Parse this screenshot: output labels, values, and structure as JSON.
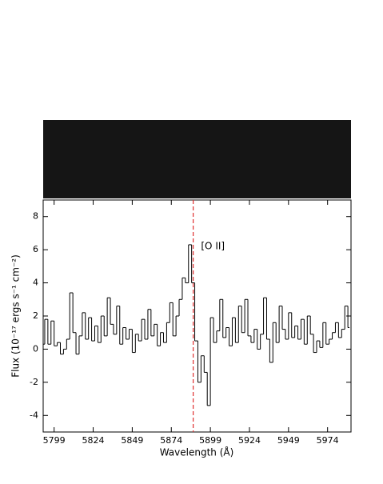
{
  "chart_data": {
    "type": "step",
    "xlabel": "Wavelength (Å)",
    "ylabel": "Flux (10⁻¹⁷ ergs s⁻¹ cm⁻²)",
    "x": [
      5792,
      5794,
      5796,
      5798,
      5800,
      5802,
      5804,
      5806,
      5808,
      5810,
      5812,
      5814,
      5816,
      5818,
      5820,
      5822,
      5824,
      5826,
      5828,
      5830,
      5832,
      5834,
      5836,
      5838,
      5840,
      5842,
      5844,
      5846,
      5848,
      5850,
      5852,
      5854,
      5856,
      5858,
      5860,
      5862,
      5864,
      5866,
      5868,
      5870,
      5872,
      5874,
      5876,
      5878,
      5880,
      5882,
      5884,
      5886,
      5888,
      5890,
      5892,
      5894,
      5896,
      5898,
      5900,
      5902,
      5904,
      5906,
      5908,
      5910,
      5912,
      5914,
      5916,
      5918,
      5920,
      5922,
      5924,
      5926,
      5928,
      5930,
      5932,
      5934,
      5936,
      5938,
      5940,
      5942,
      5944,
      5946,
      5948,
      5950,
      5952,
      5954,
      5956,
      5958,
      5960,
      5962,
      5964,
      5966,
      5968,
      5970,
      5972,
      5974,
      5976,
      5978,
      5980,
      5982,
      5984,
      5986,
      5988
    ],
    "values": [
      0.3,
      1.8,
      0.3,
      1.7,
      0.2,
      0.4,
      -0.3,
      0.0,
      0.6,
      3.4,
      1.0,
      -0.3,
      0.8,
      2.2,
      0.6,
      1.9,
      0.5,
      1.4,
      0.4,
      2.0,
      0.8,
      3.1,
      1.5,
      0.9,
      2.6,
      0.3,
      1.3,
      0.6,
      1.2,
      -0.2,
      0.9,
      0.5,
      1.8,
      0.6,
      2.4,
      0.8,
      1.5,
      0.2,
      1.0,
      0.4,
      1.6,
      2.8,
      0.8,
      2.0,
      3.0,
      4.3,
      4.0,
      6.3,
      4.0,
      0.5,
      -2.0,
      -0.4,
      -1.4,
      -3.4,
      1.9,
      0.4,
      1.1,
      3.0,
      0.7,
      1.3,
      0.2,
      1.9,
      0.4,
      2.6,
      1.0,
      3.0,
      0.8,
      0.4,
      1.2,
      0.0,
      0.9,
      3.1,
      0.6,
      -0.8,
      1.6,
      0.4,
      2.6,
      1.2,
      0.6,
      2.2,
      0.7,
      1.4,
      0.6,
      1.8,
      0.3,
      2.0,
      0.9,
      -0.2,
      0.5,
      0.1,
      1.6,
      0.3,
      0.6,
      1.0,
      1.6,
      0.7,
      1.2,
      2.6,
      1.3
    ],
    "color": "#000000",
    "xlim": [
      5792,
      5989
    ],
    "ylim": [
      -5,
      9
    ],
    "xticks": [
      5799,
      5824,
      5849,
      5874,
      5899,
      5924,
      5949,
      5974
    ],
    "yticks": [
      -4,
      -2,
      0,
      2,
      4,
      6,
      8
    ],
    "vline": {
      "x": 5888,
      "color": "#e03030"
    },
    "annotations": [
      {
        "text": "[O II]",
        "x": 5893,
        "y": 6.2
      }
    ]
  }
}
